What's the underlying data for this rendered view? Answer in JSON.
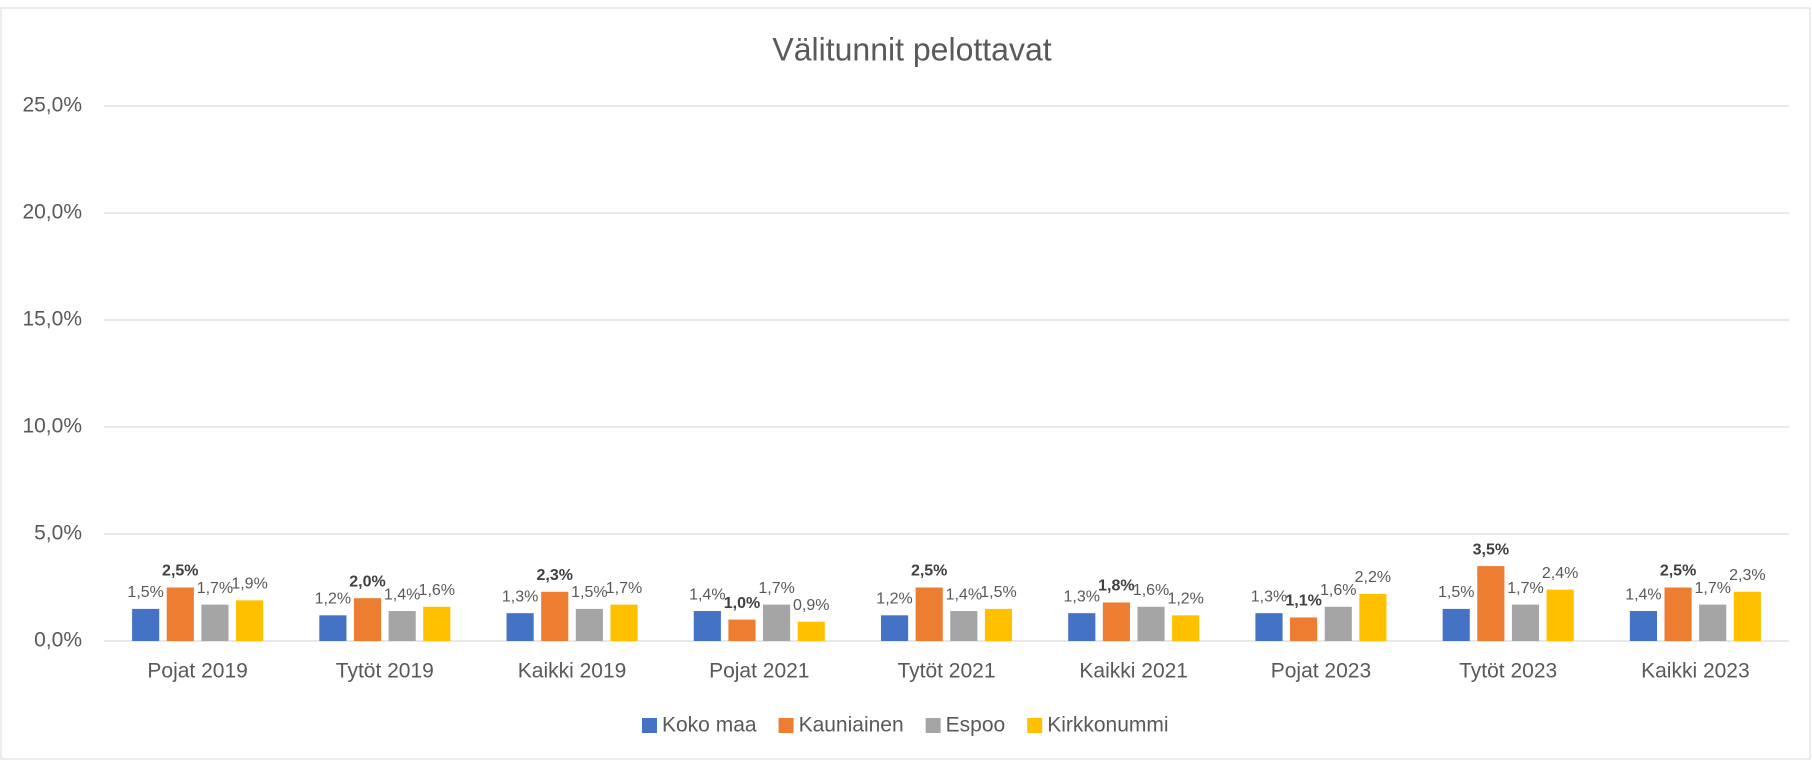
{
  "chart_data": {
    "type": "bar",
    "title": "Välitunnit pelottavat",
    "categories": [
      "Pojat 2019",
      "Tytöt 2019",
      "Kaikki 2019",
      "Pojat 2021",
      "Tytöt 2021",
      "Kaikki 2021",
      "Pojat 2023",
      "Tytöt 2023",
      "Kaikki 2023"
    ],
    "series": [
      {
        "name": "Koko maa",
        "color": "#4472c4",
        "bold_labels": false,
        "values": [
          1.5,
          1.2,
          1.3,
          1.4,
          1.2,
          1.3,
          1.3,
          1.5,
          1.4
        ],
        "value_labels": [
          "1,5%",
          "1,2%",
          "1,3%",
          "1,4%",
          "1,2%",
          "1,3%",
          "1,3%",
          "1,5%",
          "1,4%"
        ]
      },
      {
        "name": "Kauniainen",
        "color": "#ed7d31",
        "bold_labels": true,
        "values": [
          2.5,
          2.0,
          2.3,
          1.0,
          2.5,
          1.8,
          1.1,
          3.5,
          2.5
        ],
        "value_labels": [
          "2,5%",
          "2,0%",
          "2,3%",
          "1,0%",
          "2,5%",
          "1,8%",
          "1,1%",
          "3,5%",
          "2,5%"
        ]
      },
      {
        "name": "Espoo",
        "color": "#a5a5a5",
        "bold_labels": false,
        "values": [
          1.7,
          1.4,
          1.5,
          1.7,
          1.4,
          1.6,
          1.6,
          1.7,
          1.7
        ],
        "value_labels": [
          "1,7%",
          "1,4%",
          "1,5%",
          "1,7%",
          "1,4%",
          "1,6%",
          "1,6%",
          "1,7%",
          "1,7%"
        ]
      },
      {
        "name": "Kirkkonummi",
        "color": "#ffc000",
        "bold_labels": false,
        "values": [
          1.9,
          1.6,
          1.7,
          0.9,
          1.5,
          1.2,
          2.2,
          2.4,
          2.3
        ],
        "value_labels": [
          "1,9%",
          "1,6%",
          "1,7%",
          "0,9%",
          "1,5%",
          "1,2%",
          "2,2%",
          "2,4%",
          "2,3%"
        ]
      }
    ],
    "ylim": [
      0,
      25
    ],
    "yticks": [
      {
        "value": 0,
        "label": "0,0%"
      },
      {
        "value": 5,
        "label": "5,0%"
      },
      {
        "value": 10,
        "label": "10,0%"
      },
      {
        "value": 15,
        "label": "15,0%"
      },
      {
        "value": 20,
        "label": "20,0%"
      },
      {
        "value": 25,
        "label": "25,0%"
      }
    ],
    "grid": true,
    "legend": "bottom"
  }
}
